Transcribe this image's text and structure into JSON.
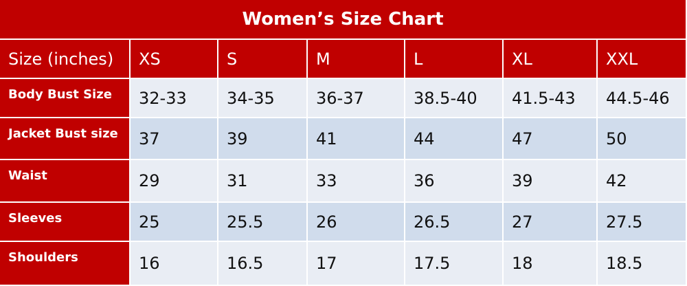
{
  "table": {
    "title": "Women’s Size Chart",
    "header": [
      "Size (inches)",
      "XS",
      "S",
      "M",
      "L",
      "XL",
      "XXL"
    ],
    "rows": [
      [
        "Body Bust Size",
        "32-33",
        "34-35",
        "36-37",
        "38.5-40",
        "41.5-43",
        "44.5-46"
      ],
      [
        "Jacket Bust size",
        "37",
        "39",
        "41",
        "44",
        "47",
        "50"
      ],
      [
        "Waist",
        "29",
        "31",
        "33",
        "36",
        "39",
        "42"
      ],
      [
        "Sleeves",
        "25",
        "25.5",
        "26",
        "26.5",
        "27",
        "27.5"
      ],
      [
        "Shoulders",
        "16",
        "16.5",
        "17",
        "17.5",
        "18",
        "18.5"
      ]
    ]
  }
}
